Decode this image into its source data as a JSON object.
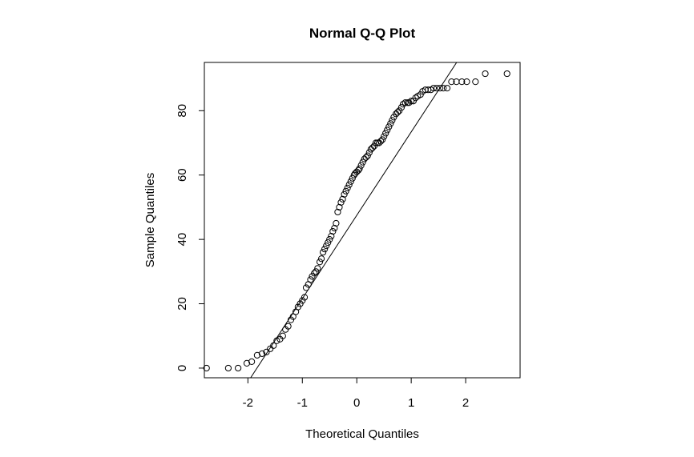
{
  "chart_data": {
    "type": "scatter",
    "title": "Normal Q-Q Plot",
    "xlabel": "Theoretical Quantiles",
    "ylabel": "Sample Quantiles",
    "xlim": [
      -2.8,
      3.0
    ],
    "ylim": [
      -3,
      95
    ],
    "x_ticks": [
      -2,
      -1,
      0,
      1,
      2
    ],
    "y_ticks": [
      0,
      20,
      40,
      60,
      80
    ],
    "x_tick_labels": [
      "-2",
      "-1",
      "0",
      "1",
      "2"
    ],
    "y_tick_labels": [
      "0",
      "20",
      "40",
      "60",
      "80"
    ],
    "grid": false,
    "marker": "open-circle",
    "reference_line": {
      "intercept": 47.5,
      "slope": 25.9
    },
    "points": [
      [
        -2.76,
        0
      ],
      [
        -2.36,
        0
      ],
      [
        -2.18,
        0
      ],
      [
        -2.02,
        1.5
      ],
      [
        -1.93,
        2
      ],
      [
        -1.83,
        4
      ],
      [
        -1.74,
        4.5
      ],
      [
        -1.66,
        5
      ],
      [
        -1.59,
        6
      ],
      [
        -1.53,
        7
      ],
      [
        -1.47,
        8.5
      ],
      [
        -1.41,
        9
      ],
      [
        -1.36,
        10
      ],
      [
        -1.31,
        12
      ],
      [
        -1.26,
        13
      ],
      [
        -1.21,
        15
      ],
      [
        -1.17,
        16
      ],
      [
        -1.12,
        17.5
      ],
      [
        -1.08,
        19
      ],
      [
        -1.04,
        20
      ],
      [
        -1.0,
        21
      ],
      [
        -0.96,
        22
      ],
      [
        -0.93,
        25
      ],
      [
        -0.89,
        26
      ],
      [
        -0.85,
        27.5
      ],
      [
        -0.82,
        28.5
      ],
      [
        -0.78,
        29.5
      ],
      [
        -0.75,
        30
      ],
      [
        -0.72,
        31
      ],
      [
        -0.68,
        33
      ],
      [
        -0.65,
        34
      ],
      [
        -0.62,
        36
      ],
      [
        -0.59,
        37
      ],
      [
        -0.56,
        38
      ],
      [
        -0.53,
        39
      ],
      [
        -0.5,
        40
      ],
      [
        -0.47,
        41
      ],
      [
        -0.44,
        42.5
      ],
      [
        -0.41,
        43.5
      ],
      [
        -0.38,
        45
      ],
      [
        -0.35,
        48.5
      ],
      [
        -0.32,
        50
      ],
      [
        -0.29,
        51.5
      ],
      [
        -0.26,
        52.5
      ],
      [
        -0.23,
        54
      ],
      [
        -0.2,
        55
      ],
      [
        -0.17,
        56
      ],
      [
        -0.14,
        57
      ],
      [
        -0.11,
        58
      ],
      [
        -0.08,
        59
      ],
      [
        -0.05,
        60
      ],
      [
        -0.03,
        60.5
      ],
      [
        0.0,
        61
      ],
      [
        0.03,
        61.5
      ],
      [
        0.05,
        62
      ],
      [
        0.08,
        63
      ],
      [
        0.11,
        64
      ],
      [
        0.14,
        65
      ],
      [
        0.17,
        65.5
      ],
      [
        0.2,
        66
      ],
      [
        0.23,
        67
      ],
      [
        0.26,
        68
      ],
      [
        0.29,
        68.5
      ],
      [
        0.32,
        69
      ],
      [
        0.35,
        70
      ],
      [
        0.38,
        70
      ],
      [
        0.41,
        70
      ],
      [
        0.44,
        70.5
      ],
      [
        0.47,
        71
      ],
      [
        0.5,
        72
      ],
      [
        0.53,
        73
      ],
      [
        0.56,
        74
      ],
      [
        0.59,
        75
      ],
      [
        0.62,
        76
      ],
      [
        0.65,
        77
      ],
      [
        0.68,
        78
      ],
      [
        0.72,
        79
      ],
      [
        0.75,
        79.5
      ],
      [
        0.78,
        80
      ],
      [
        0.82,
        81
      ],
      [
        0.85,
        82
      ],
      [
        0.89,
        82.5
      ],
      [
        0.93,
        82.5
      ],
      [
        0.96,
        82.5
      ],
      [
        1.0,
        83
      ],
      [
        1.04,
        83
      ],
      [
        1.08,
        84
      ],
      [
        1.12,
        84.5
      ],
      [
        1.17,
        85
      ],
      [
        1.21,
        86
      ],
      [
        1.26,
        86.5
      ],
      [
        1.31,
        86.5
      ],
      [
        1.36,
        86.5
      ],
      [
        1.41,
        87
      ],
      [
        1.47,
        87
      ],
      [
        1.53,
        87
      ],
      [
        1.59,
        87
      ],
      [
        1.66,
        87
      ],
      [
        1.74,
        89
      ],
      [
        1.83,
        89
      ],
      [
        1.93,
        89
      ],
      [
        2.02,
        89
      ],
      [
        2.18,
        89
      ],
      [
        2.36,
        91.5
      ],
      [
        2.76,
        91.5
      ]
    ]
  }
}
